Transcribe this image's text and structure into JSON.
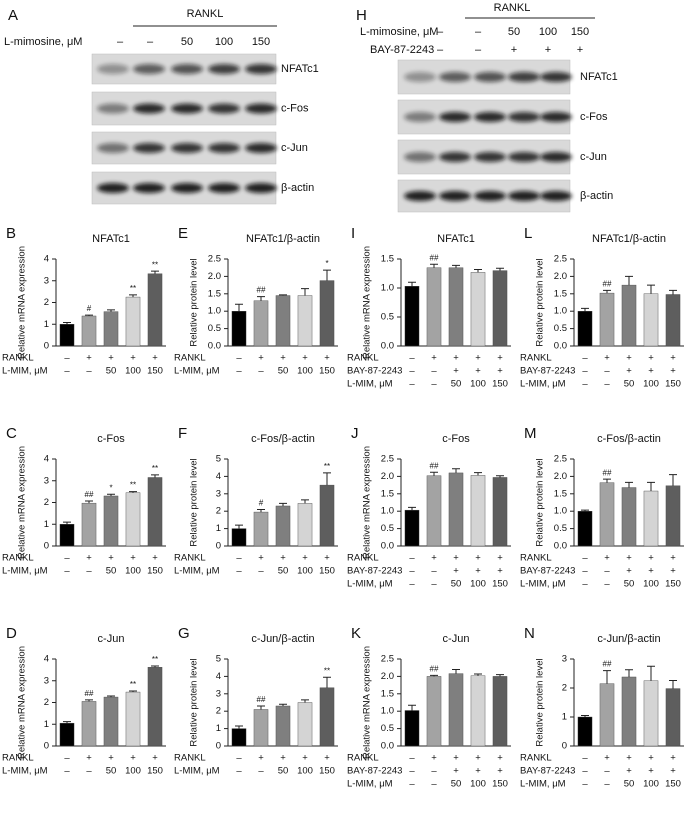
{
  "blots": [
    {
      "panel": "A",
      "header": "RANKL",
      "rows": [
        {
          "label": "L-mimosine, μM",
          "values": [
            "–",
            "–",
            "50",
            "100",
            "150"
          ]
        }
      ],
      "bands": [
        "NFATc1",
        "c-Fos",
        "c-Jun",
        "β-actin"
      ]
    },
    {
      "panel": "H",
      "header": "RANKL",
      "rows": [
        {
          "label": "L-mimosine, μM",
          "values": [
            "–",
            "–",
            "50",
            "100",
            "150"
          ]
        },
        {
          "label": "BAY-87-2243",
          "values": [
            "–",
            "–",
            "+",
            "+",
            "+"
          ]
        }
      ],
      "bands": [
        "NFATc1",
        "c-Fos",
        "c-Jun",
        "β-actin"
      ]
    }
  ],
  "chart_data": [
    {
      "type": "bar",
      "panel": "B",
      "title": "NFATc1",
      "ylabel": "Relative mRNA expression",
      "ylim": [
        0,
        4
      ],
      "yticks": [
        0,
        1,
        2,
        3,
        4
      ],
      "values": [
        1.0,
        1.38,
        1.58,
        2.25,
        3.32
      ],
      "errors": [
        0.08,
        0.04,
        0.08,
        0.1,
        0.12
      ],
      "annotations": [
        null,
        "#",
        null,
        "**",
        "**"
      ],
      "colors": [
        "#000000",
        "#a3a3a3",
        "#7f7f7f",
        "#d4d4d4",
        "#5e5e5e"
      ],
      "conditions": [
        {
          "label": "RANKL",
          "values": [
            "–",
            "+",
            "+",
            "+",
            "+"
          ]
        },
        {
          "label": "L-MIM, μM",
          "values": [
            "–",
            "–",
            "50",
            "100",
            "150"
          ]
        }
      ]
    },
    {
      "type": "bar",
      "panel": "E",
      "title": "NFATc1/β-actin",
      "ylabel": "Relative protein level",
      "ylim": [
        0,
        2.5
      ],
      "yticks": [
        {
          "value": 0,
          "label": "0.0"
        },
        0.5,
        {
          "value": 1,
          "label": "1.0"
        },
        1.5,
        {
          "value": 2,
          "label": "2.0"
        },
        2.5
      ],
      "values": [
        1.0,
        1.3,
        1.45,
        1.45,
        1.88
      ],
      "errors": [
        0.2,
        0.12,
        0.02,
        0.2,
        0.3
      ],
      "annotations": [
        null,
        "##",
        null,
        null,
        "*"
      ],
      "colors": [
        "#000000",
        "#a3a3a3",
        "#7f7f7f",
        "#d4d4d4",
        "#5e5e5e"
      ],
      "conditions": [
        {
          "label": "RANKL",
          "values": [
            "–",
            "+",
            "+",
            "+",
            "+"
          ]
        },
        {
          "label": "L-MIM, μM",
          "values": [
            "–",
            "–",
            "50",
            "100",
            "150"
          ]
        }
      ]
    },
    {
      "type": "bar",
      "panel": "I",
      "title": "NFATc1",
      "ylabel": "Relative mRNA expression",
      "ylim": [
        0,
        1.5
      ],
      "yticks": [
        {
          "value": 0,
          "label": "0.0"
        },
        0.5,
        {
          "value": 1,
          "label": "1.0"
        },
        1.5
      ],
      "values": [
        1.03,
        1.35,
        1.35,
        1.27,
        1.3
      ],
      "errors": [
        0.07,
        0.06,
        0.04,
        0.05,
        0.04
      ],
      "annotations": [
        null,
        "##",
        null,
        null,
        null
      ],
      "colors": [
        "#000000",
        "#a3a3a3",
        "#7f7f7f",
        "#d4d4d4",
        "#5e5e5e"
      ],
      "conditions": [
        {
          "label": "RANKL",
          "values": [
            "–",
            "+",
            "+",
            "+",
            "+"
          ]
        },
        {
          "label": "BAY-87-2243",
          "values": [
            "–",
            "–",
            "+",
            "+",
            "+"
          ]
        },
        {
          "label": "L-MIM, μM",
          "values": [
            "–",
            "–",
            "50",
            "100",
            "150"
          ]
        }
      ]
    },
    {
      "type": "bar",
      "panel": "L",
      "title": "NFATc1/β-actin",
      "ylabel": "Relative protein level",
      "ylim": [
        0,
        2.5
      ],
      "yticks": [
        {
          "value": 0,
          "label": "0.0"
        },
        0.5,
        {
          "value": 1,
          "label": "1.0"
        },
        1.5,
        {
          "value": 2,
          "label": "2.0"
        },
        2.5
      ],
      "values": [
        1.0,
        1.52,
        1.75,
        1.5,
        1.48
      ],
      "errors": [
        0.08,
        0.08,
        0.25,
        0.25,
        0.12
      ],
      "annotations": [
        null,
        "##",
        null,
        null,
        null
      ],
      "colors": [
        "#000000",
        "#a3a3a3",
        "#7f7f7f",
        "#d4d4d4",
        "#5e5e5e"
      ],
      "conditions": [
        {
          "label": "RANKL",
          "values": [
            "–",
            "+",
            "+",
            "+",
            "+"
          ]
        },
        {
          "label": "BAY-87-2243",
          "values": [
            "–",
            "–",
            "+",
            "+",
            "+"
          ]
        },
        {
          "label": "L-MIM, μM",
          "values": [
            "–",
            "–",
            "50",
            "100",
            "150"
          ]
        }
      ]
    },
    {
      "type": "bar",
      "panel": "C",
      "title": "c-Fos",
      "ylabel": "Relative mRNA expression",
      "ylim": [
        0,
        4
      ],
      "yticks": [
        0,
        1,
        2,
        3,
        4
      ],
      "values": [
        1.0,
        1.97,
        2.3,
        2.45,
        3.15
      ],
      "errors": [
        0.1,
        0.1,
        0.08,
        0.05,
        0.12
      ],
      "annotations": [
        null,
        "##",
        "*",
        "**",
        "**"
      ],
      "colors": [
        "#000000",
        "#a3a3a3",
        "#7f7f7f",
        "#d4d4d4",
        "#5e5e5e"
      ],
      "conditions": [
        {
          "label": "RANKL",
          "values": [
            "–",
            "+",
            "+",
            "+",
            "+"
          ]
        },
        {
          "label": "L-MIM, μM",
          "values": [
            "–",
            "–",
            "50",
            "100",
            "150"
          ]
        }
      ]
    },
    {
      "type": "bar",
      "panel": "F",
      "title": "c-Fos/β-actin",
      "ylabel": "Relative protein level",
      "ylim": [
        0,
        5
      ],
      "yticks": [
        0,
        1,
        2,
        3,
        4,
        5
      ],
      "values": [
        1.0,
        1.95,
        2.3,
        2.45,
        3.5
      ],
      "errors": [
        0.2,
        0.15,
        0.15,
        0.2,
        0.7
      ],
      "annotations": [
        null,
        "#",
        null,
        null,
        "**"
      ],
      "colors": [
        "#000000",
        "#a3a3a3",
        "#7f7f7f",
        "#d4d4d4",
        "#5e5e5e"
      ],
      "conditions": [
        {
          "label": "RANKL",
          "values": [
            "–",
            "+",
            "+",
            "+",
            "+"
          ]
        },
        {
          "label": "L-MIM, μM",
          "values": [
            "–",
            "–",
            "50",
            "100",
            "150"
          ]
        }
      ]
    },
    {
      "type": "bar",
      "panel": "J",
      "title": "c-Fos",
      "ylabel": "Relative mRNA expression",
      "ylim": [
        0,
        2.5
      ],
      "yticks": [
        {
          "value": 0,
          "label": "0.0"
        },
        0.5,
        {
          "value": 1,
          "label": "1.0"
        },
        1.5,
        {
          "value": 2,
          "label": "2.0"
        },
        2.5
      ],
      "values": [
        1.03,
        2.02,
        2.1,
        2.03,
        1.97
      ],
      "errors": [
        0.08,
        0.1,
        0.12,
        0.08,
        0.05
      ],
      "annotations": [
        null,
        "##",
        null,
        null,
        null
      ],
      "colors": [
        "#000000",
        "#a3a3a3",
        "#7f7f7f",
        "#d4d4d4",
        "#5e5e5e"
      ],
      "conditions": [
        {
          "label": "RANKL",
          "values": [
            "–",
            "+",
            "+",
            "+",
            "+"
          ]
        },
        {
          "label": "BAY-87-2243",
          "values": [
            "–",
            "–",
            "+",
            "+",
            "+"
          ]
        },
        {
          "label": "L-MIM, μM",
          "values": [
            "–",
            "–",
            "50",
            "100",
            "150"
          ]
        }
      ]
    },
    {
      "type": "bar",
      "panel": "M",
      "title": "c-Fos/β-actin",
      "ylabel": "Relative protein level",
      "ylim": [
        0,
        2.5
      ],
      "yticks": [
        {
          "value": 0,
          "label": "0.0"
        },
        0.5,
        {
          "value": 1,
          "label": "1.0"
        },
        1.5,
        {
          "value": 2,
          "label": "2.0"
        },
        2.5
      ],
      "values": [
        1.0,
        1.82,
        1.68,
        1.58,
        1.73
      ],
      "errors": [
        0.03,
        0.1,
        0.15,
        0.25,
        0.32
      ],
      "annotations": [
        null,
        "##",
        null,
        null,
        null
      ],
      "colors": [
        "#000000",
        "#a3a3a3",
        "#7f7f7f",
        "#d4d4d4",
        "#5e5e5e"
      ],
      "conditions": [
        {
          "label": "RANKL",
          "values": [
            "–",
            "+",
            "+",
            "+",
            "+"
          ]
        },
        {
          "label": "BAY-87-2243",
          "values": [
            "–",
            "–",
            "+",
            "+",
            "+"
          ]
        },
        {
          "label": "L-MIM, μM",
          "values": [
            "–",
            "–",
            "50",
            "100",
            "150"
          ]
        }
      ]
    },
    {
      "type": "bar",
      "panel": "D",
      "title": "c-Jun",
      "ylabel": "Relative mRNA expression",
      "ylim": [
        0,
        4
      ],
      "yticks": [
        0,
        1,
        2,
        3,
        4
      ],
      "values": [
        1.05,
        2.05,
        2.25,
        2.48,
        3.62
      ],
      "errors": [
        0.07,
        0.07,
        0.05,
        0.05,
        0.06
      ],
      "annotations": [
        null,
        "##",
        null,
        "**",
        "**"
      ],
      "colors": [
        "#000000",
        "#a3a3a3",
        "#7f7f7f",
        "#d4d4d4",
        "#5e5e5e"
      ],
      "conditions": [
        {
          "label": "RANKL",
          "values": [
            "–",
            "+",
            "+",
            "+",
            "+"
          ]
        },
        {
          "label": "L-MIM, μM",
          "values": [
            "–",
            "–",
            "50",
            "100",
            "150"
          ]
        }
      ]
    },
    {
      "type": "bar",
      "panel": "G",
      "title": "c-Jun/β-actin",
      "ylabel": "Relative protein level",
      "ylim": [
        0,
        5
      ],
      "yticks": [
        0,
        1,
        2,
        3,
        4,
        5
      ],
      "values": [
        1.0,
        2.1,
        2.3,
        2.5,
        3.35
      ],
      "errors": [
        0.15,
        0.2,
        0.1,
        0.15,
        0.6
      ],
      "annotations": [
        null,
        "##",
        null,
        null,
        "**"
      ],
      "colors": [
        "#000000",
        "#a3a3a3",
        "#7f7f7f",
        "#d4d4d4",
        "#5e5e5e"
      ],
      "conditions": [
        {
          "label": "RANKL",
          "values": [
            "–",
            "+",
            "+",
            "+",
            "+"
          ]
        },
        {
          "label": "L-MIM, μM",
          "values": [
            "–",
            "–",
            "50",
            "100",
            "150"
          ]
        }
      ]
    },
    {
      "type": "bar",
      "panel": "K",
      "title": "c-Jun",
      "ylabel": "Relative mRNA expression",
      "ylim": [
        0,
        2.5
      ],
      "yticks": [
        {
          "value": 0,
          "label": "0.0"
        },
        0.5,
        {
          "value": 1,
          "label": "1.0"
        },
        1.5,
        {
          "value": 2,
          "label": "2.0"
        },
        2.5
      ],
      "values": [
        1.02,
        2.0,
        2.08,
        2.02,
        2.0
      ],
      "errors": [
        0.15,
        0.03,
        0.12,
        0.05,
        0.05
      ],
      "annotations": [
        null,
        "##",
        null,
        null,
        null
      ],
      "colors": [
        "#000000",
        "#a3a3a3",
        "#7f7f7f",
        "#d4d4d4",
        "#5e5e5e"
      ],
      "conditions": [
        {
          "label": "RANKL",
          "values": [
            "–",
            "+",
            "+",
            "+",
            "+"
          ]
        },
        {
          "label": "BAY-87-2243",
          "values": [
            "–",
            "–",
            "+",
            "+",
            "+"
          ]
        },
        {
          "label": "L-MIM, μM",
          "values": [
            "–",
            "–",
            "50",
            "100",
            "150"
          ]
        }
      ]
    },
    {
      "type": "bar",
      "panel": "N",
      "title": "c-Jun/β-actin",
      "ylabel": "Relative protein level",
      "ylim": [
        0,
        3
      ],
      "yticks": [
        0,
        1,
        2,
        3
      ],
      "values": [
        1.0,
        2.15,
        2.38,
        2.25,
        1.98
      ],
      "errors": [
        0.05,
        0.45,
        0.25,
        0.5,
        0.28
      ],
      "annotations": [
        null,
        "##",
        null,
        null,
        null
      ],
      "colors": [
        "#000000",
        "#a3a3a3",
        "#7f7f7f",
        "#d4d4d4",
        "#5e5e5e"
      ],
      "conditions": [
        {
          "label": "RANKL",
          "values": [
            "–",
            "+",
            "+",
            "+",
            "+"
          ]
        },
        {
          "label": "BAY-87-2243",
          "values": [
            "–",
            "–",
            "+",
            "+",
            "+"
          ]
        },
        {
          "label": "L-MIM, μM",
          "values": [
            "–",
            "–",
            "50",
            "100",
            "150"
          ]
        }
      ]
    }
  ]
}
